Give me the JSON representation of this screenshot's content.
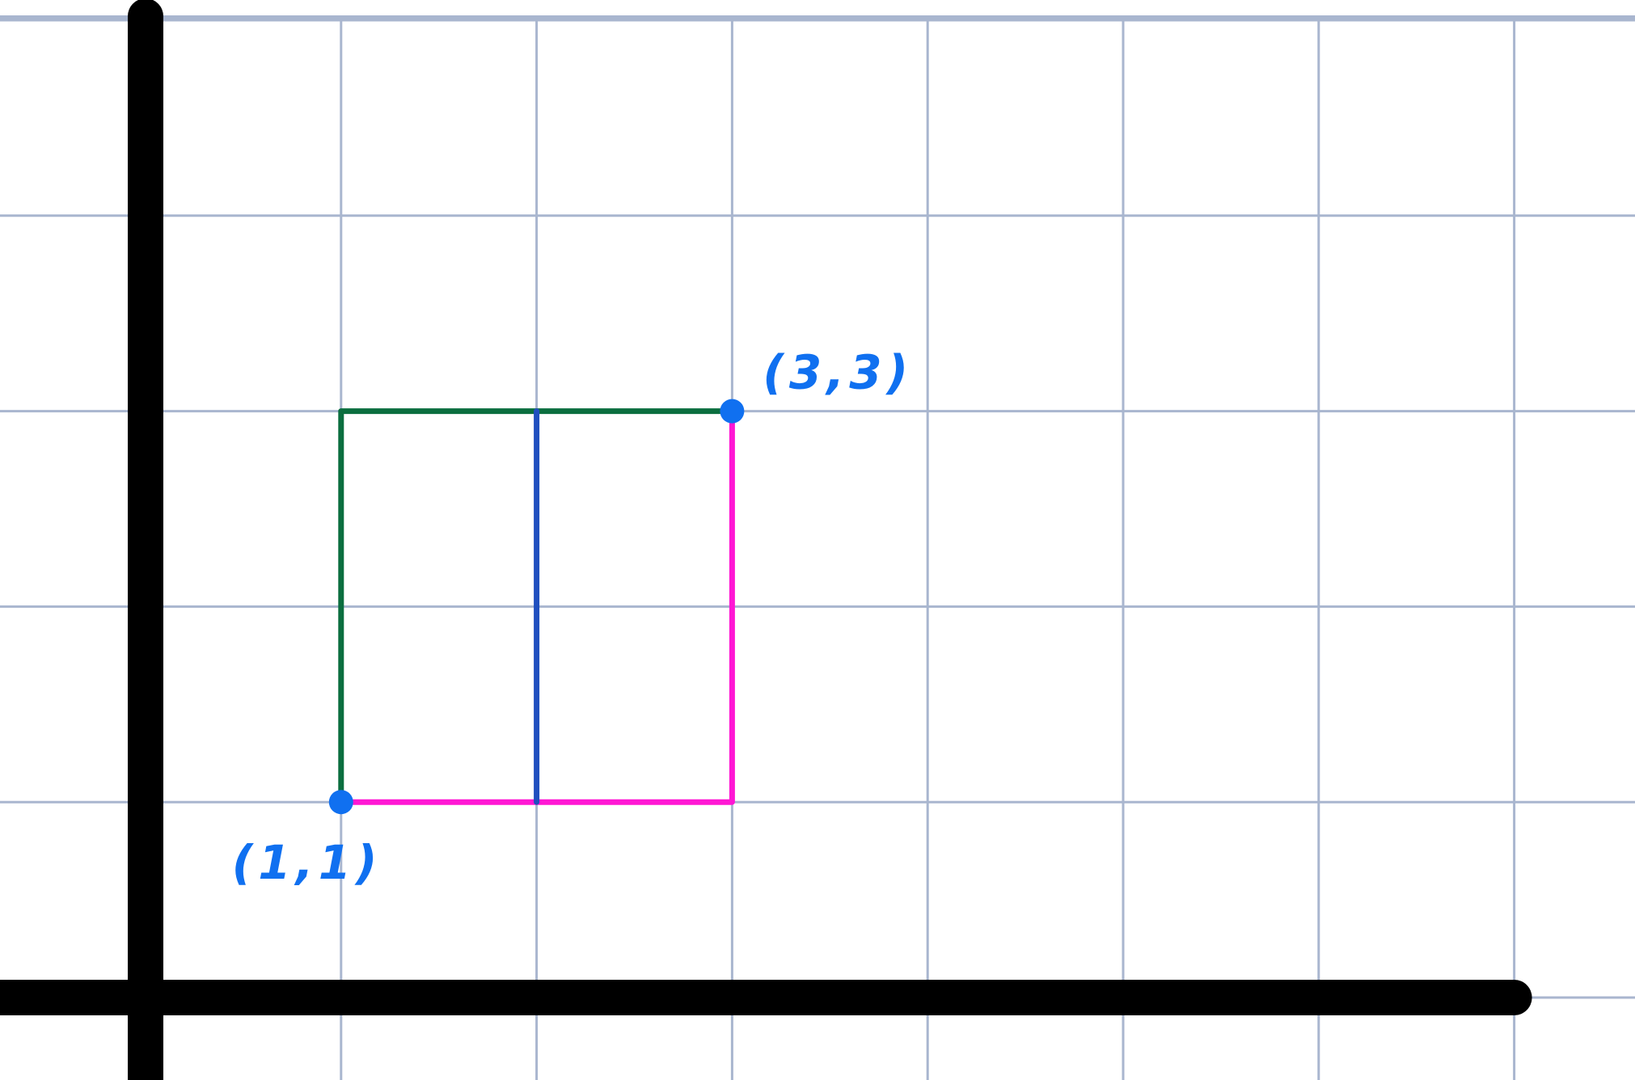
{
  "colors": {
    "background": "#ffffff",
    "grid": "#a9b6cf",
    "axes": "#000000",
    "green_path": "#0b6e3f",
    "magenta_path": "#ff17d4",
    "blue_segment": "#1f4fbf",
    "points": "#1070f0"
  },
  "grid": {
    "x_min": 0,
    "x_max": 7,
    "y_min": 0,
    "y_max": 5
  },
  "points": [
    {
      "label": "(1,1)",
      "x": 1,
      "y": 1
    },
    {
      "label": "(3,3)",
      "x": 3,
      "y": 3
    }
  ],
  "paths": [
    {
      "name": "green-path",
      "color_key": "green_path",
      "points": [
        [
          1,
          1
        ],
        [
          1,
          3
        ],
        [
          3,
          3
        ]
      ]
    },
    {
      "name": "magenta-path",
      "color_key": "magenta_path",
      "points": [
        [
          1,
          1
        ],
        [
          3,
          1
        ],
        [
          3,
          3
        ]
      ]
    },
    {
      "name": "blue-segment",
      "color_key": "blue_segment",
      "points": [
        [
          2,
          1
        ],
        [
          2,
          3
        ]
      ]
    }
  ]
}
